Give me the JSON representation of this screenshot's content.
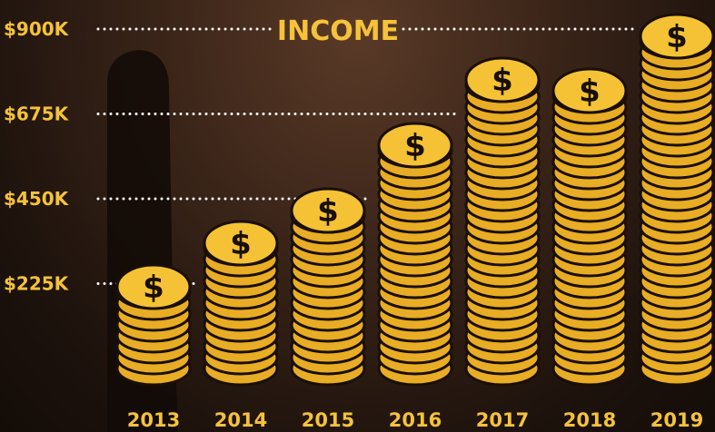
{
  "chart_data": {
    "type": "bar",
    "title": "INCOME",
    "categories": [
      "2013",
      "2014",
      "2015",
      "2016",
      "2017",
      "2018",
      "2019"
    ],
    "values": [
      225,
      340,
      420,
      610,
      780,
      760,
      900
    ],
    "y_ticks": [
      {
        "value": 225,
        "label": "$225K"
      },
      {
        "value": 450,
        "label": "$450K"
      },
      {
        "value": 675,
        "label": "$675K"
      },
      {
        "value": 900,
        "label": "$900K"
      }
    ],
    "ylim": [
      0,
      900
    ],
    "coin_symbol": "$",
    "grid": "dotted white guide lines ending at first taller bar",
    "legend": "none",
    "colors": {
      "accent": "#f5c23a",
      "coin": "#f4c234",
      "coin_edge": "#1a0f06",
      "guide": "#ffffff"
    }
  }
}
